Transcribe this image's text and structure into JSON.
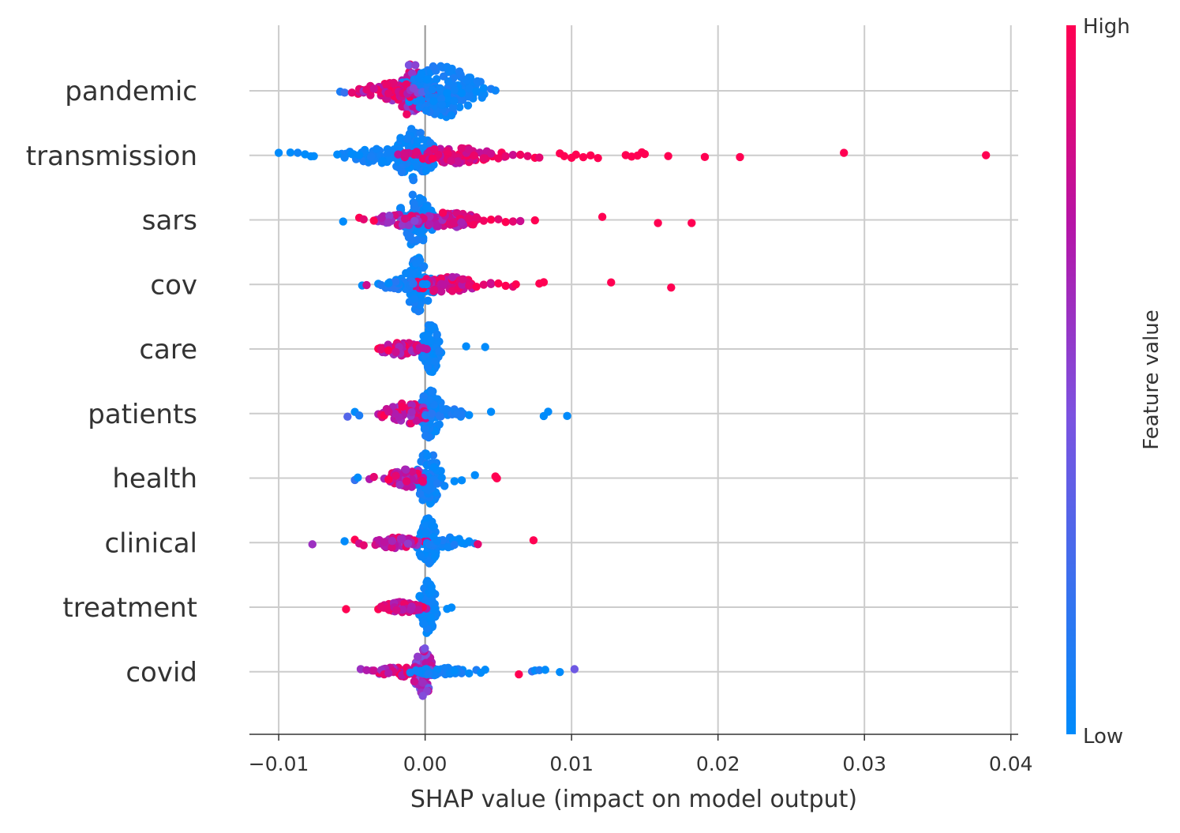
{
  "chart_data": {
    "type": "scatter",
    "variant": "shap-beeswarm",
    "xlabel": "SHAP value (impact on model output)",
    "xlim": [
      -0.012,
      0.0405
    ],
    "xticks": [
      -0.01,
      0.0,
      0.01,
      0.02,
      0.03,
      0.04
    ],
    "xtick_labels": [
      "−0.01",
      "0.00",
      "0.01",
      "0.02",
      "0.03",
      "0.04"
    ],
    "grid": true,
    "colorbar": {
      "label": "Feature value",
      "high_label": "High",
      "low_label": "Low",
      "low_color": "#008bfb",
      "high_color": "#ff0052"
    },
    "features": [
      {
        "name": "pandemic",
        "sample_points": [
          [
            -0.0058,
            0.1
          ],
          [
            -0.0055,
            0.2
          ],
          [
            -0.005,
            0.9
          ],
          [
            -0.0045,
            0.9
          ],
          [
            -0.0042,
            0.6
          ],
          [
            -0.004,
            0.9
          ],
          [
            -0.0035,
            0.8
          ],
          [
            -0.003,
            0.95
          ],
          [
            -0.0027,
            0.7
          ],
          [
            -0.0025,
            0.9
          ],
          [
            -0.002,
            0.95
          ],
          [
            -0.0018,
            0.8
          ],
          [
            -0.0015,
            0.9
          ],
          [
            -0.0012,
            0.7
          ],
          [
            -0.001,
            0.6
          ],
          [
            -0.0008,
            0.5
          ],
          [
            -0.0005,
            0.5
          ],
          [
            -0.0002,
            0.3
          ],
          [
            0.0002,
            0.1
          ],
          [
            0.0005,
            0.05
          ],
          [
            0.001,
            0.05
          ],
          [
            0.0015,
            0.0
          ],
          [
            0.002,
            0.05
          ],
          [
            0.0025,
            0.0
          ],
          [
            0.003,
            0.05
          ],
          [
            0.0035,
            0.0
          ],
          [
            0.004,
            0.0
          ],
          [
            0.0045,
            0.1
          ],
          [
            0.0048,
            0.05
          ]
        ],
        "dense": [
          {
            "center": -0.0009,
            "spread": 0.0006,
            "count": 60,
            "hw": 1.0,
            "vmin": 0.45,
            "vmax": 0.95
          },
          {
            "center": 0.0012,
            "spread": 0.0012,
            "count": 160,
            "hw": 1.0,
            "vmin": 0.0,
            "vmax": 0.12
          },
          {
            "center": -0.0022,
            "spread": 0.001,
            "count": 50,
            "hw": 0.35,
            "vmin": 0.7,
            "vmax": 1.0
          }
        ]
      },
      {
        "name": "transmission",
        "sample_points": [
          [
            -0.01,
            0.0
          ],
          [
            -0.0092,
            0.0
          ],
          [
            -0.0087,
            0.05
          ],
          [
            -0.0082,
            0.0
          ],
          [
            -0.0078,
            0.0
          ],
          [
            -0.0076,
            0.0
          ],
          [
            -0.006,
            0.0
          ],
          [
            -0.0055,
            0.05
          ],
          [
            -0.005,
            0.0
          ],
          [
            -0.0045,
            0.0
          ],
          [
            0.004,
            0.9
          ],
          [
            0.0045,
            0.8
          ],
          [
            0.005,
            0.95
          ],
          [
            0.0055,
            0.9
          ],
          [
            0.006,
            0.8
          ],
          [
            0.0065,
            0.95
          ],
          [
            0.007,
            0.9
          ],
          [
            0.0075,
            1.0
          ],
          [
            0.0078,
            0.9
          ],
          [
            0.0092,
            1.0
          ],
          [
            0.0095,
            1.0
          ],
          [
            0.01,
            1.0
          ],
          [
            0.0103,
            1.0
          ],
          [
            0.0108,
            1.0
          ],
          [
            0.0113,
            1.0
          ],
          [
            0.0118,
            1.0
          ],
          [
            0.0137,
            1.0
          ],
          [
            0.0141,
            1.0
          ],
          [
            0.0145,
            1.0
          ],
          [
            0.0148,
            1.0
          ],
          [
            0.015,
            1.0
          ],
          [
            0.0166,
            1.0
          ],
          [
            0.0191,
            1.0
          ],
          [
            0.0215,
            1.0
          ],
          [
            0.0286,
            1.0
          ],
          [
            0.0383,
            1.0
          ]
        ],
        "dense": [
          {
            "center": -0.0008,
            "spread": 0.0007,
            "count": 90,
            "hw": 1.0,
            "vmin": 0.0,
            "vmax": 0.1
          },
          {
            "center": -0.003,
            "spread": 0.0013,
            "count": 60,
            "hw": 0.3,
            "vmin": 0.0,
            "vmax": 0.1
          },
          {
            "center": 0.002,
            "spread": 0.0014,
            "count": 90,
            "hw": 0.3,
            "vmin": 0.7,
            "vmax": 1.0
          }
        ]
      },
      {
        "name": "sars",
        "sample_points": [
          [
            -0.0056,
            0.0
          ],
          [
            -0.0045,
            1.0
          ],
          [
            -0.0042,
            0.9
          ],
          [
            -0.0035,
            1.0
          ],
          [
            -0.003,
            0.7
          ],
          [
            -0.0025,
            0.6
          ],
          [
            0.003,
            0.9
          ],
          [
            0.0035,
            0.9
          ],
          [
            0.004,
            0.95
          ],
          [
            0.0045,
            1.0
          ],
          [
            0.005,
            0.9
          ],
          [
            0.0055,
            1.0
          ],
          [
            0.006,
            0.9
          ],
          [
            0.0065,
            0.8
          ],
          [
            0.0075,
            1.0
          ],
          [
            0.0121,
            1.0
          ],
          [
            0.0159,
            1.0
          ],
          [
            0.0182,
            1.0
          ]
        ],
        "dense": [
          {
            "center": -0.0007,
            "spread": 0.0006,
            "count": 80,
            "hw": 1.0,
            "vmin": 0.0,
            "vmax": 0.12
          },
          {
            "center": 0.0015,
            "spread": 0.0012,
            "count": 80,
            "hw": 0.3,
            "vmin": 0.6,
            "vmax": 1.0
          },
          {
            "center": -0.0018,
            "spread": 0.0008,
            "count": 30,
            "hw": 0.25,
            "vmin": 0.5,
            "vmax": 0.9
          }
        ]
      },
      {
        "name": "cov",
        "sample_points": [
          [
            -0.0043,
            0.0
          ],
          [
            -0.004,
            0.8
          ],
          [
            -0.0032,
            0.0
          ],
          [
            -0.003,
            0.1
          ],
          [
            -0.0025,
            0.0
          ],
          [
            0.003,
            0.9
          ],
          [
            0.0035,
            1.0
          ],
          [
            0.004,
            0.9
          ],
          [
            0.0045,
            0.8
          ],
          [
            0.005,
            1.0
          ],
          [
            0.0055,
            1.0
          ],
          [
            0.006,
            0.9
          ],
          [
            0.0062,
            1.0
          ],
          [
            0.0078,
            1.0
          ],
          [
            0.0081,
            1.0
          ],
          [
            0.0127,
            1.0
          ],
          [
            0.0168,
            1.0
          ]
        ],
        "dense": [
          {
            "center": -0.0005,
            "spread": 0.0005,
            "count": 80,
            "hw": 1.0,
            "vmin": 0.0,
            "vmax": 0.1
          },
          {
            "center": 0.0014,
            "spread": 0.0011,
            "count": 80,
            "hw": 0.3,
            "vmin": 0.65,
            "vmax": 1.0
          },
          {
            "center": -0.0018,
            "spread": 0.0007,
            "count": 25,
            "hw": 0.2,
            "vmin": 0.0,
            "vmax": 0.15
          }
        ]
      },
      {
        "name": "care",
        "sample_points": [
          [
            -0.0032,
            1.0
          ],
          [
            -0.003,
            0.9
          ],
          [
            -0.0025,
            1.0
          ],
          [
            -0.002,
            0.8
          ],
          [
            0.0028,
            0.0
          ],
          [
            0.0041,
            0.0
          ]
        ],
        "dense": [
          {
            "center": 0.0004,
            "spread": 0.0003,
            "count": 90,
            "hw": 1.0,
            "vmin": 0.0,
            "vmax": 0.08
          },
          {
            "center": -0.0015,
            "spread": 0.0008,
            "count": 60,
            "hw": 0.25,
            "vmin": 0.55,
            "vmax": 1.0
          }
        ]
      },
      {
        "name": "patients",
        "sample_points": [
          [
            -0.0053,
            0.3
          ],
          [
            -0.0048,
            0.0
          ],
          [
            -0.0045,
            0.1
          ],
          [
            -0.0032,
            0.7
          ],
          [
            -0.003,
            0.9
          ],
          [
            -0.0028,
            1.0
          ],
          [
            -0.0025,
            0.8
          ],
          [
            0.0025,
            0.1
          ],
          [
            0.003,
            0.0
          ],
          [
            0.0045,
            0.0
          ],
          [
            0.0081,
            0.0
          ],
          [
            0.0084,
            0.0
          ],
          [
            0.0097,
            0.0
          ]
        ],
        "dense": [
          {
            "center": 0.0003,
            "spread": 0.0004,
            "count": 80,
            "hw": 1.0,
            "vmin": 0.0,
            "vmax": 0.1
          },
          {
            "center": -0.0012,
            "spread": 0.0008,
            "count": 50,
            "hw": 0.4,
            "vmin": 0.55,
            "vmax": 1.0
          },
          {
            "center": 0.0015,
            "spread": 0.0007,
            "count": 30,
            "hw": 0.2,
            "vmin": 0.0,
            "vmax": 0.15
          }
        ]
      },
      {
        "name": "health",
        "sample_points": [
          [
            -0.0048,
            0.2
          ],
          [
            -0.0046,
            0.0
          ],
          [
            -0.0038,
            0.7
          ],
          [
            -0.0035,
            0.9
          ],
          [
            -0.0025,
            1.0
          ],
          [
            -0.002,
            0.9
          ],
          [
            0.002,
            0.0
          ],
          [
            0.0025,
            0.0
          ],
          [
            0.0034,
            0.0
          ],
          [
            0.0048,
            1.0
          ],
          [
            0.0049,
            1.0
          ]
        ],
        "dense": [
          {
            "center": 0.0002,
            "spread": 0.0005,
            "count": 80,
            "hw": 1.0,
            "vmin": 0.0,
            "vmax": 0.12
          },
          {
            "center": -0.0012,
            "spread": 0.0008,
            "count": 50,
            "hw": 0.35,
            "vmin": 0.55,
            "vmax": 1.0
          }
        ]
      },
      {
        "name": "clinical",
        "sample_points": [
          [
            -0.0077,
            0.6
          ],
          [
            -0.0055,
            0.0
          ],
          [
            -0.0048,
            1.0
          ],
          [
            -0.0045,
            0.8
          ],
          [
            -0.0042,
            0.9
          ],
          [
            0.002,
            0.1
          ],
          [
            0.0025,
            0.0
          ],
          [
            0.003,
            0.0
          ],
          [
            0.0034,
            0.1
          ],
          [
            0.0036,
            0.9
          ],
          [
            0.0074,
            1.0
          ]
        ],
        "dense": [
          {
            "center": 0.0002,
            "spread": 0.0003,
            "count": 80,
            "hw": 1.0,
            "vmin": 0.0,
            "vmax": 0.08
          },
          {
            "center": -0.002,
            "spread": 0.0009,
            "count": 70,
            "hw": 0.2,
            "vmin": 0.55,
            "vmax": 1.0
          },
          {
            "center": 0.0015,
            "spread": 0.0008,
            "count": 30,
            "hw": 0.2,
            "vmin": 0.0,
            "vmax": 0.1
          }
        ]
      },
      {
        "name": "treatment",
        "sample_points": [
          [
            -0.0054,
            1.0
          ],
          [
            -0.0032,
            1.0
          ],
          [
            -0.003,
            0.9
          ],
          [
            0.0015,
            0.0
          ],
          [
            0.0018,
            0.0
          ]
        ],
        "dense": [
          {
            "center": 0.0002,
            "spread": 0.0003,
            "count": 90,
            "hw": 1.0,
            "vmin": 0.0,
            "vmax": 0.08
          },
          {
            "center": -0.0015,
            "spread": 0.0007,
            "count": 70,
            "hw": 0.2,
            "vmin": 0.65,
            "vmax": 1.0
          }
        ]
      },
      {
        "name": "covid",
        "sample_points": [
          [
            -0.0044,
            0.6
          ],
          [
            -0.004,
            0.7
          ],
          [
            -0.0035,
            0.8
          ],
          [
            -0.003,
            0.6
          ],
          [
            -0.0028,
            0.9
          ],
          [
            -0.0025,
            0.7
          ],
          [
            0.002,
            0.0
          ],
          [
            0.003,
            0.0
          ],
          [
            0.0035,
            0.1
          ],
          [
            0.0038,
            0.0
          ],
          [
            0.0041,
            0.0
          ],
          [
            0.0064,
            1.0
          ],
          [
            0.0073,
            0.2
          ],
          [
            0.0075,
            0.0
          ],
          [
            0.0078,
            0.1
          ],
          [
            0.0082,
            0.0
          ],
          [
            0.0092,
            0.0
          ],
          [
            0.0102,
            0.4
          ]
        ],
        "dense": [
          {
            "center": -0.0001,
            "spread": 0.0003,
            "count": 80,
            "hw": 1.0,
            "vmin": 0.35,
            "vmax": 0.85
          },
          {
            "center": -0.0015,
            "spread": 0.0009,
            "count": 50,
            "hw": 0.2,
            "vmin": 0.5,
            "vmax": 1.0
          },
          {
            "center": 0.0013,
            "spread": 0.001,
            "count": 40,
            "hw": 0.15,
            "vmin": 0.0,
            "vmax": 0.1
          }
        ]
      }
    ]
  }
}
